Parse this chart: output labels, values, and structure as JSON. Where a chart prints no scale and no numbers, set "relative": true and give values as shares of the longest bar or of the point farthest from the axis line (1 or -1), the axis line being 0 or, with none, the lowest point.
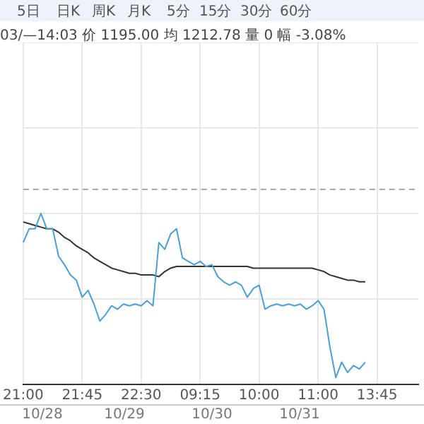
{
  "chart_data": {
    "type": "line",
    "relative": true,
    "title": "03/—14:03 价 1195.00 均 1212.78 量 0 幅 -3.08%",
    "annotations": [
      "5日",
      "日K",
      "周K",
      "月K",
      "5分",
      "15分",
      "30分",
      "60分",
      "10/28",
      "10/29",
      "10/30",
      "10/31"
    ],
    "categories": [
      "21:00",
      null,
      null,
      null,
      null,
      null,
      null,
      null,
      null,
      null,
      "21:45",
      null,
      null,
      null,
      null,
      null,
      null,
      null,
      null,
      null,
      "22:30",
      null,
      null,
      null,
      null,
      null,
      null,
      null,
      null,
      null,
      "09:15",
      null,
      null,
      null,
      null,
      null,
      null,
      null,
      null,
      null,
      "10:00",
      null,
      null,
      null,
      null,
      null,
      null,
      null,
      null,
      null,
      "11:00",
      null,
      null,
      null,
      null,
      null,
      null,
      null,
      null,
      null,
      "13:45",
      null,
      null,
      null,
      null,
      null,
      null,
      null
    ],
    "series": [
      {
        "color": "#4a9fd4",
        "values": [
          0.83,
          0.91,
          0.91,
          1,
          0.91,
          0.91,
          0.75,
          0.7,
          0.64,
          0.61,
          0.51,
          0.55,
          0.47,
          0.37,
          0.41,
          0.46,
          0.44,
          0.47,
          0.46,
          0.47,
          0.46,
          0.49,
          0.46,
          0.83,
          0.79,
          0.88,
          0.91,
          0.74,
          0.72,
          0.7,
          0.72,
          0.69,
          0.7,
          0.63,
          0.6,
          0.58,
          0.6,
          0.58,
          0.51,
          0.56,
          0.58,
          0.44,
          0.46,
          0.47,
          0.46,
          0.47,
          0.46,
          0.47,
          0.44,
          0.46,
          0.49,
          0.44,
          0.22,
          0.04,
          0.13,
          0.07,
          0.11,
          0.09,
          0.13,
          null,
          null,
          null,
          null,
          null,
          null,
          null,
          null,
          null
        ]
      },
      {
        "color": "#333333",
        "values": [
          0.95,
          0.94,
          0.93,
          0.92,
          0.91,
          0.91,
          0.89,
          0.86,
          0.84,
          0.81,
          0.79,
          0.77,
          0.74,
          0.72,
          0.7,
          0.68,
          0.67,
          0.66,
          0.65,
          0.65,
          0.64,
          0.64,
          0.64,
          0.63,
          0.66,
          0.68,
          0.69,
          0.69,
          0.69,
          0.69,
          0.69,
          0.69,
          0.69,
          0.69,
          0.69,
          0.69,
          0.69,
          0.69,
          0.69,
          0.68,
          0.68,
          0.68,
          0.68,
          0.68,
          0.68,
          0.68,
          0.68,
          0.68,
          0.68,
          0.68,
          0.67,
          0.66,
          0.64,
          0.63,
          0.62,
          0.61,
          0.61,
          0.6,
          0.6,
          null,
          null,
          null,
          null,
          null,
          null,
          null,
          null,
          null
        ]
      }
    ],
    "ref_lines": [
      {
        "axis": "y",
        "value": 1.14,
        "color": "#aaaaaa",
        "line_style": "dashed"
      }
    ],
    "grid": true,
    "legend": false,
    "marker": "none",
    "line_style": "solid"
  }
}
